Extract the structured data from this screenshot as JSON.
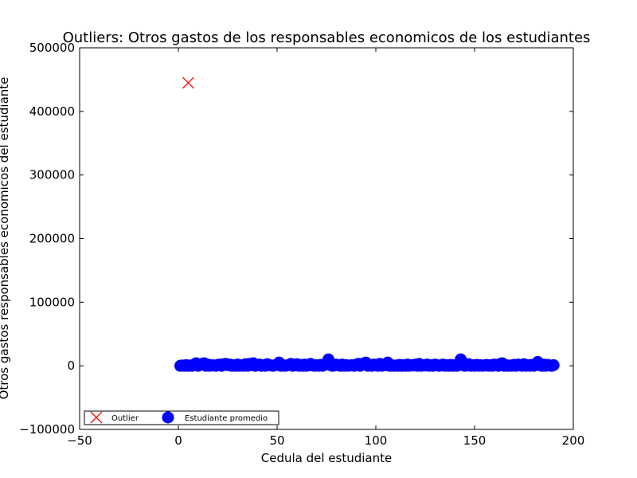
{
  "chart_data": {
    "type": "scatter",
    "title": "Outliers: Otros gastos de los responsables economicos de los estudiantes",
    "xlabel": "Cedula del estudiante",
    "ylabel": "Otros gastos responsables economicos del estudiante",
    "xlim": [
      -50,
      200
    ],
    "ylim": [
      -100000,
      500000
    ],
    "xticks": [
      -50,
      0,
      50,
      100,
      150,
      200
    ],
    "yticks": [
      -100000,
      0,
      100000,
      200000,
      300000,
      400000,
      500000
    ],
    "grid": false,
    "legend_position": "lower-left",
    "series": [
      {
        "name": "Outlier",
        "marker": "x",
        "color": "#ff0000",
        "points": [
          [
            5,
            445000
          ]
        ]
      },
      {
        "name": "Estudiante promedio",
        "marker": "circle",
        "color": "#0000ff",
        "points": [
          [
            1,
            0
          ],
          [
            2,
            500
          ],
          [
            3,
            0
          ],
          [
            4,
            1000
          ],
          [
            5,
            0
          ],
          [
            6,
            500
          ],
          [
            7,
            0
          ],
          [
            8,
            2000
          ],
          [
            9,
            4000
          ],
          [
            10,
            0
          ],
          [
            11,
            1500
          ],
          [
            12,
            3000
          ],
          [
            13,
            4000
          ],
          [
            14,
            0
          ],
          [
            15,
            2000
          ],
          [
            16,
            0
          ],
          [
            17,
            1000
          ],
          [
            18,
            500
          ],
          [
            19,
            0
          ],
          [
            20,
            1500
          ],
          [
            21,
            2000
          ],
          [
            22,
            0
          ],
          [
            23,
            2500
          ],
          [
            24,
            3000
          ],
          [
            25,
            1000
          ],
          [
            26,
            2000
          ],
          [
            27,
            0
          ],
          [
            28,
            1000
          ],
          [
            29,
            0
          ],
          [
            30,
            2000
          ],
          [
            31,
            0
          ],
          [
            32,
            1000
          ],
          [
            33,
            0
          ],
          [
            34,
            2500
          ],
          [
            35,
            0
          ],
          [
            36,
            3000
          ],
          [
            37,
            1000
          ],
          [
            38,
            4000
          ],
          [
            39,
            0
          ],
          [
            40,
            1000
          ],
          [
            41,
            2000
          ],
          [
            42,
            0
          ],
          [
            43,
            1000
          ],
          [
            44,
            0
          ],
          [
            45,
            2500
          ],
          [
            46,
            1000
          ],
          [
            47,
            500
          ],
          [
            48,
            0
          ],
          [
            49,
            1000
          ],
          [
            50,
            2000
          ],
          [
            51,
            5000
          ],
          [
            52,
            0
          ],
          [
            53,
            1000
          ],
          [
            54,
            0
          ],
          [
            55,
            500
          ],
          [
            56,
            1500
          ],
          [
            57,
            3000
          ],
          [
            58,
            0
          ],
          [
            59,
            1000
          ],
          [
            60,
            2500
          ],
          [
            61,
            0
          ],
          [
            62,
            1500
          ],
          [
            63,
            0
          ],
          [
            64,
            2000
          ],
          [
            65,
            0
          ],
          [
            66,
            1000
          ],
          [
            67,
            3000
          ],
          [
            68,
            500
          ],
          [
            69,
            0
          ],
          [
            70,
            1000
          ],
          [
            71,
            0
          ],
          [
            72,
            1500
          ],
          [
            73,
            0
          ],
          [
            74,
            2000
          ],
          [
            75,
            3000
          ],
          [
            76,
            10000
          ],
          [
            77,
            1000
          ],
          [
            78,
            0
          ],
          [
            79,
            500
          ],
          [
            80,
            2000
          ],
          [
            81,
            1000
          ],
          [
            82,
            0
          ],
          [
            83,
            2000
          ],
          [
            84,
            0
          ],
          [
            85,
            1000
          ],
          [
            86,
            0
          ],
          [
            87,
            500
          ],
          [
            88,
            1000
          ],
          [
            89,
            0
          ],
          [
            90,
            1500
          ],
          [
            91,
            3000
          ],
          [
            92,
            0
          ],
          [
            93,
            2000
          ],
          [
            94,
            4000
          ],
          [
            95,
            5000
          ],
          [
            96,
            0
          ],
          [
            97,
            1000
          ],
          [
            98,
            0
          ],
          [
            99,
            2000
          ],
          [
            100,
            1000
          ],
          [
            101,
            0
          ],
          [
            102,
            3000
          ],
          [
            103,
            0
          ],
          [
            104,
            2000
          ],
          [
            105,
            1000
          ],
          [
            106,
            5000
          ],
          [
            107,
            0
          ],
          [
            108,
            1000
          ],
          [
            109,
            0
          ],
          [
            110,
            500
          ],
          [
            111,
            0
          ],
          [
            112,
            1500
          ],
          [
            113,
            0
          ],
          [
            114,
            1000
          ],
          [
            115,
            0
          ],
          [
            116,
            2000
          ],
          [
            117,
            0
          ],
          [
            118,
            1000
          ],
          [
            119,
            500
          ],
          [
            120,
            2000
          ],
          [
            121,
            0
          ],
          [
            122,
            3000
          ],
          [
            123,
            0
          ],
          [
            124,
            1000
          ],
          [
            125,
            500
          ],
          [
            126,
            2000
          ],
          [
            127,
            0
          ],
          [
            128,
            1000
          ],
          [
            129,
            0
          ],
          [
            130,
            2000
          ],
          [
            131,
            1000
          ],
          [
            132,
            0
          ],
          [
            133,
            500
          ],
          [
            134,
            2000
          ],
          [
            135,
            0
          ],
          [
            136,
            1000
          ],
          [
            137,
            0
          ],
          [
            138,
            1500
          ],
          [
            139,
            0
          ],
          [
            140,
            1000
          ],
          [
            141,
            0
          ],
          [
            142,
            2000
          ],
          [
            143,
            10000
          ],
          [
            144,
            1000
          ],
          [
            145,
            0
          ],
          [
            146,
            500
          ],
          [
            147,
            2500
          ],
          [
            148,
            0
          ],
          [
            149,
            1000
          ],
          [
            150,
            0
          ],
          [
            151,
            1500
          ],
          [
            152,
            0
          ],
          [
            153,
            1000
          ],
          [
            154,
            0
          ],
          [
            155,
            500
          ],
          [
            156,
            1500
          ],
          [
            157,
            0
          ],
          [
            158,
            1000
          ],
          [
            159,
            0
          ],
          [
            160,
            2000
          ],
          [
            161,
            1000
          ],
          [
            162,
            0
          ],
          [
            163,
            3000
          ],
          [
            164,
            4000
          ],
          [
            165,
            0
          ],
          [
            166,
            1000
          ],
          [
            167,
            0
          ],
          [
            168,
            500
          ],
          [
            169,
            0
          ],
          [
            170,
            1500
          ],
          [
            171,
            0
          ],
          [
            172,
            2000
          ],
          [
            173,
            1000
          ],
          [
            174,
            0
          ],
          [
            175,
            2500
          ],
          [
            176,
            0
          ],
          [
            177,
            1000
          ],
          [
            178,
            0
          ],
          [
            179,
            1500
          ],
          [
            180,
            0
          ],
          [
            181,
            2000
          ],
          [
            182,
            6000
          ],
          [
            183,
            1000
          ],
          [
            184,
            0
          ],
          [
            185,
            2000
          ],
          [
            186,
            0
          ],
          [
            187,
            1500
          ],
          [
            188,
            500
          ],
          [
            189,
            0
          ],
          [
            190,
            1000
          ]
        ]
      }
    ]
  }
}
